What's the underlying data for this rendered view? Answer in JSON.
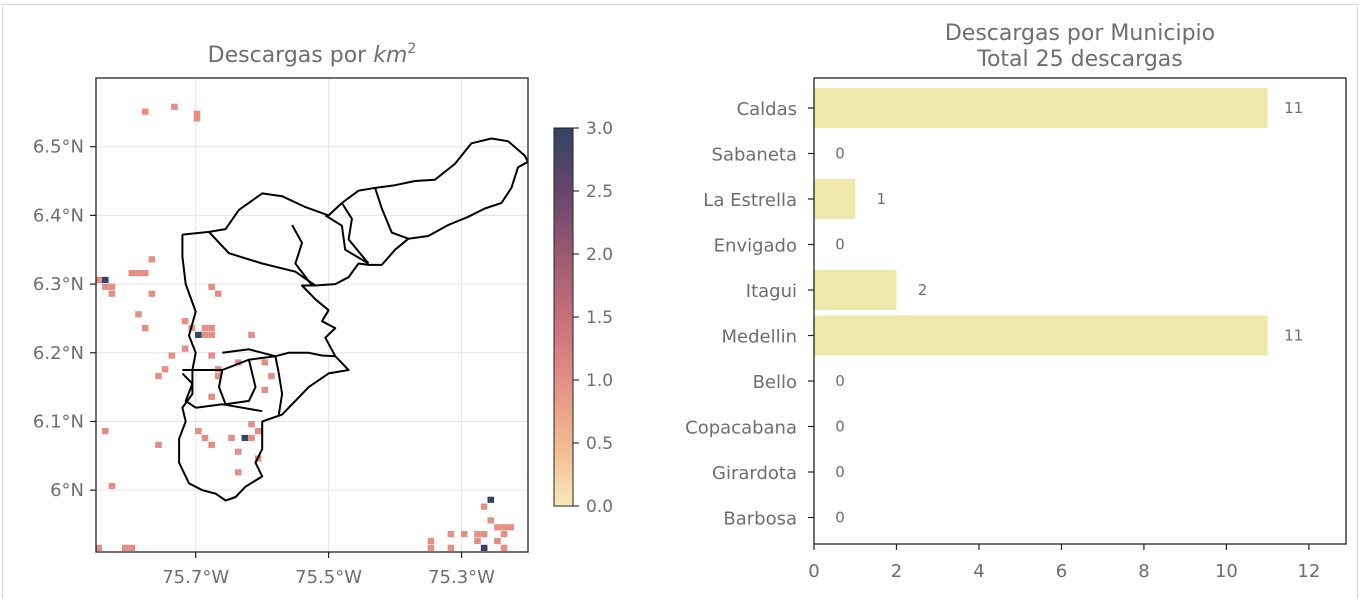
{
  "chart_data": [
    {
      "type": "heatmap",
      "title": "Descargas por km²",
      "title_main": "Descargas por ",
      "title_unit": "km",
      "title_exp": "2",
      "xlim": [
        -75.85,
        -75.2
      ],
      "ylim": [
        5.91,
        6.6
      ],
      "xticks": [
        {
          "value": -75.7,
          "label": "75.7°W"
        },
        {
          "value": -75.5,
          "label": "75.5°W"
        },
        {
          "value": -75.3,
          "label": "75.3°W"
        }
      ],
      "yticks": [
        {
          "value": 6.0,
          "label": "6°N"
        },
        {
          "value": 6.1,
          "label": "6.1°N"
        },
        {
          "value": 6.2,
          "label": "6.2°N"
        },
        {
          "value": 6.3,
          "label": "6.3°N"
        },
        {
          "value": 6.4,
          "label": "6.4°N"
        },
        {
          "value": 6.5,
          "label": "6.5°N"
        }
      ],
      "grid": true,
      "colorbar": {
        "min": 0,
        "max": 3,
        "ticks": [
          "0.0",
          "0.5",
          "1.0",
          "1.5",
          "2.0",
          "2.5",
          "3.0"
        ],
        "colors": [
          "#f7e9b8",
          "#f2b78e",
          "#e48e86",
          "#c76f7a",
          "#9b5a72",
          "#65466b",
          "#334464"
        ]
      },
      "cells": [
        [
          -75.776,
          6.551,
          1
        ],
        [
          -75.732,
          6.558,
          1
        ],
        [
          -75.698,
          6.548,
          1
        ],
        [
          -75.698,
          6.541,
          1
        ],
        [
          -75.846,
          6.306,
          1
        ],
        [
          -75.836,
          6.306,
          3
        ],
        [
          -75.826,
          6.296,
          1
        ],
        [
          -75.836,
          6.296,
          1
        ],
        [
          -75.826,
          6.286,
          1
        ],
        [
          -75.796,
          6.316,
          1
        ],
        [
          -75.786,
          6.316,
          1
        ],
        [
          -75.776,
          6.316,
          1
        ],
        [
          -75.766,
          6.336,
          1
        ],
        [
          -75.766,
          6.286,
          1
        ],
        [
          -75.786,
          6.256,
          1
        ],
        [
          -75.776,
          6.236,
          1
        ],
        [
          -75.716,
          6.246,
          1
        ],
        [
          -75.706,
          6.236,
          1
        ],
        [
          -75.686,
          6.236,
          1
        ],
        [
          -75.676,
          6.236,
          1
        ],
        [
          -75.686,
          6.226,
          1
        ],
        [
          -75.676,
          6.226,
          1
        ],
        [
          -75.696,
          6.226,
          3
        ],
        [
          -75.716,
          6.206,
          1
        ],
        [
          -75.736,
          6.196,
          1
        ],
        [
          -75.746,
          6.176,
          1
        ],
        [
          -75.756,
          6.166,
          1
        ],
        [
          -75.676,
          6.196,
          1
        ],
        [
          -75.666,
          6.176,
          1
        ],
        [
          -75.666,
          6.166,
          1
        ],
        [
          -75.636,
          6.186,
          1
        ],
        [
          -75.616,
          6.226,
          1
        ],
        [
          -75.596,
          6.186,
          1
        ],
        [
          -75.586,
          6.166,
          1
        ],
        [
          -75.596,
          6.146,
          1
        ],
        [
          -75.676,
          6.136,
          1
        ],
        [
          -75.616,
          6.096,
          1
        ],
        [
          -75.836,
          6.086,
          1
        ],
        [
          -75.756,
          6.066,
          1
        ],
        [
          -75.696,
          6.086,
          1
        ],
        [
          -75.686,
          6.076,
          1
        ],
        [
          -75.676,
          6.066,
          1
        ],
        [
          -75.646,
          6.076,
          1
        ],
        [
          -75.626,
          6.076,
          3
        ],
        [
          -75.616,
          6.076,
          1
        ],
        [
          -75.636,
          6.056,
          1
        ],
        [
          -75.606,
          6.046,
          1
        ],
        [
          -75.636,
          6.026,
          1
        ],
        [
          -75.606,
          6.086,
          1
        ],
        [
          -75.676,
          6.296,
          1
        ],
        [
          -75.666,
          6.286,
          1
        ],
        [
          -75.826,
          6.006,
          1
        ],
        [
          -75.846,
          5.916,
          1
        ],
        [
          -75.806,
          5.916,
          1
        ],
        [
          -75.796,
          5.916,
          1
        ],
        [
          -75.196,
          6.016,
          1
        ],
        [
          -75.256,
          5.986,
          3
        ],
        [
          -75.266,
          5.976,
          1
        ],
        [
          -75.256,
          5.956,
          1
        ],
        [
          -75.246,
          5.946,
          1
        ],
        [
          -75.236,
          5.946,
          1
        ],
        [
          -75.226,
          5.946,
          1
        ],
        [
          -75.266,
          5.936,
          1
        ],
        [
          -75.276,
          5.936,
          1
        ],
        [
          -75.296,
          5.936,
          1
        ],
        [
          -75.316,
          5.936,
          1
        ],
        [
          -75.346,
          5.926,
          1
        ],
        [
          -75.346,
          5.916,
          1
        ],
        [
          -75.356,
          5.906,
          1
        ],
        [
          -75.246,
          5.926,
          1
        ],
        [
          -75.236,
          5.936,
          1
        ],
        [
          -75.266,
          5.916,
          3
        ],
        [
          -75.276,
          5.926,
          1
        ],
        [
          -75.306,
          5.906,
          3
        ],
        [
          -75.316,
          5.916,
          1
        ],
        [
          -75.236,
          5.916,
          1
        ]
      ],
      "boundaries": [
        [
          [
            -75.72,
            6.372
          ],
          [
            -75.68,
            6.376
          ],
          [
            -75.655,
            6.38
          ],
          [
            -75.635,
            6.408
          ],
          [
            -75.6,
            6.432
          ],
          [
            -75.57,
            6.428
          ],
          [
            -75.535,
            6.412
          ],
          [
            -75.5,
            6.4
          ],
          [
            -75.48,
            6.418
          ],
          [
            -75.455,
            6.436
          ],
          [
            -75.43,
            6.44
          ],
          [
            -75.4,
            6.444
          ],
          [
            -75.37,
            6.45
          ],
          [
            -75.34,
            6.452
          ],
          [
            -75.31,
            6.475
          ],
          [
            -75.285,
            6.505
          ],
          [
            -75.255,
            6.512
          ],
          [
            -75.23,
            6.508
          ],
          [
            -75.205,
            6.487
          ],
          [
            -75.2,
            6.478
          ],
          [
            -75.215,
            6.47
          ],
          [
            -75.225,
            6.44
          ],
          [
            -75.24,
            6.418
          ],
          [
            -75.265,
            6.41
          ],
          [
            -75.29,
            6.398
          ],
          [
            -75.32,
            6.386
          ],
          [
            -75.35,
            6.37
          ],
          [
            -75.38,
            6.366
          ],
          [
            -75.4,
            6.35
          ],
          [
            -75.42,
            6.328
          ],
          [
            -75.44,
            6.328
          ],
          [
            -75.455,
            6.33
          ],
          [
            -75.47,
            6.31
          ],
          [
            -75.49,
            6.3
          ],
          [
            -75.52,
            6.298
          ],
          [
            -75.54,
            6.298
          ],
          [
            -75.52,
            6.278
          ],
          [
            -75.5,
            6.262
          ],
          [
            -75.51,
            6.246
          ],
          [
            -75.49,
            6.236
          ],
          [
            -75.505,
            6.222
          ],
          [
            -75.49,
            6.195
          ],
          [
            -75.47,
            6.175
          ],
          [
            -75.5,
            6.17
          ],
          [
            -75.53,
            6.15
          ],
          [
            -75.57,
            6.11
          ],
          [
            -75.6,
            6.1
          ],
          [
            -75.6,
            6.06
          ],
          [
            -75.61,
            6.04
          ],
          [
            -75.6,
            6.02
          ],
          [
            -75.625,
            6.005
          ],
          [
            -75.64,
            5.99
          ],
          [
            -75.655,
            5.985
          ],
          [
            -75.67,
            5.995
          ],
          [
            -75.69,
            6.0
          ],
          [
            -75.71,
            6.01
          ],
          [
            -75.725,
            6.04
          ],
          [
            -75.725,
            6.075
          ],
          [
            -75.715,
            6.1
          ],
          [
            -75.72,
            6.12
          ],
          [
            -75.705,
            6.14
          ],
          [
            -75.705,
            6.175
          ],
          [
            -75.7,
            6.2
          ],
          [
            -75.71,
            6.225
          ],
          [
            -75.7,
            6.26
          ],
          [
            -75.715,
            6.3
          ],
          [
            -75.72,
            6.34
          ],
          [
            -75.72,
            6.372
          ]
        ],
        [
          [
            -75.68,
            6.376
          ],
          [
            -75.65,
            6.345
          ],
          [
            -75.6,
            6.33
          ],
          [
            -75.55,
            6.318
          ],
          [
            -75.52,
            6.298
          ]
        ],
        [
          [
            -75.555,
            6.386
          ],
          [
            -75.54,
            6.36
          ],
          [
            -75.55,
            6.33
          ],
          [
            -75.525,
            6.298
          ]
        ],
        [
          [
            -75.505,
            6.4
          ],
          [
            -75.48,
            6.385
          ],
          [
            -75.475,
            6.35
          ],
          [
            -75.44,
            6.33
          ]
        ],
        [
          [
            -75.48,
            6.418
          ],
          [
            -75.465,
            6.395
          ],
          [
            -75.47,
            6.365
          ],
          [
            -75.44,
            6.33
          ]
        ],
        [
          [
            -75.43,
            6.44
          ],
          [
            -75.42,
            6.41
          ],
          [
            -75.405,
            6.375
          ],
          [
            -75.38,
            6.366
          ]
        ],
        [
          [
            -75.72,
            6.175
          ],
          [
            -75.66,
            6.175
          ],
          [
            -75.62,
            6.19
          ],
          [
            -75.58,
            6.195
          ],
          [
            -75.56,
            6.2
          ],
          [
            -75.53,
            6.2
          ],
          [
            -75.51,
            6.196
          ],
          [
            -75.49,
            6.195
          ]
        ],
        [
          [
            -75.66,
            6.2
          ],
          [
            -75.62,
            6.205
          ],
          [
            -75.6,
            6.2
          ],
          [
            -75.58,
            6.195
          ],
          [
            -75.575,
            6.17
          ],
          [
            -75.57,
            6.14
          ],
          [
            -75.575,
            6.11
          ]
        ],
        [
          [
            -75.7,
            6.12
          ],
          [
            -75.66,
            6.125
          ],
          [
            -75.63,
            6.12
          ],
          [
            -75.6,
            6.115
          ]
        ],
        [
          [
            -75.66,
            6.175
          ],
          [
            -75.665,
            6.15
          ],
          [
            -75.655,
            6.125
          ],
          [
            -75.62,
            6.13
          ],
          [
            -75.61,
            6.15
          ],
          [
            -75.62,
            6.19
          ]
        ],
        [
          [
            -75.72,
            6.17
          ],
          [
            -75.705,
            6.155
          ],
          [
            -75.715,
            6.13
          ],
          [
            -75.7,
            6.12
          ]
        ]
      ]
    },
    {
      "type": "bar",
      "orientation": "horizontal",
      "title": "Descargas por Municipio",
      "subtitle": "Total 25 descargas",
      "categories": [
        "Caldas",
        "Sabaneta",
        "La Estrella",
        "Envigado",
        "Itagui",
        "Medellin",
        "Bello",
        "Copacabana",
        "Girardota",
        "Barbosa"
      ],
      "values": [
        11,
        0,
        1,
        0,
        2,
        11,
        0,
        0,
        0,
        0
      ],
      "data_labels": [
        "11",
        "0",
        "1",
        "0",
        "2",
        "11",
        "0",
        "0",
        "0",
        "0"
      ],
      "xlim": [
        0,
        12.9
      ],
      "xticks": [
        "0",
        "2",
        "4",
        "6",
        "8",
        "10",
        "12"
      ],
      "bar_color": "#eee8aa",
      "grid": false
    }
  ]
}
